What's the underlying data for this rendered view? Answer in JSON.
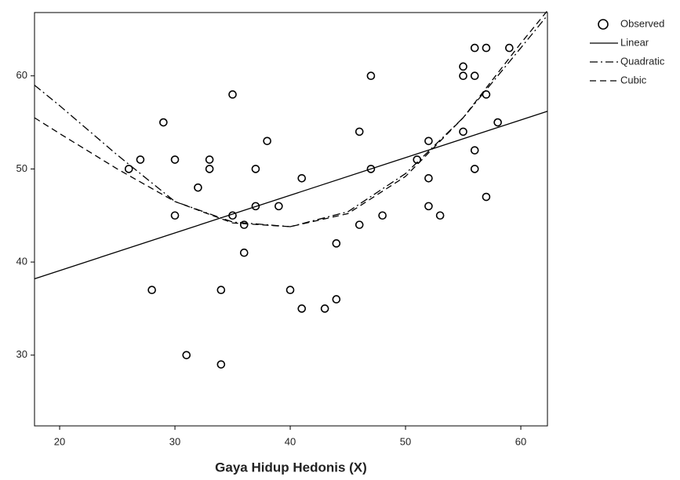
{
  "chart_data": {
    "type": "scatter",
    "x_label": "Gaya Hidup Hedonis (X)",
    "xlim": [
      17.82,
      62.31
    ],
    "ylim": [
      22.4,
      66.8
    ],
    "xticks": [
      20,
      30,
      40,
      50,
      60
    ],
    "yticks": [
      30,
      40,
      50,
      60
    ],
    "grid": false,
    "legend": "outside-right",
    "series": [
      {
        "name": "Observed",
        "kind": "points",
        "color": "#000000",
        "x": [
          26,
          27,
          28,
          29,
          30,
          30,
          31,
          32,
          33,
          33,
          34,
          34,
          35,
          35,
          36,
          36,
          37,
          37,
          38,
          39,
          40,
          41,
          41,
          43,
          44,
          44,
          46,
          46,
          47,
          47,
          48,
          51,
          52,
          52,
          52,
          53,
          55,
          55,
          55,
          56,
          56,
          56,
          56,
          57,
          57,
          57,
          58,
          59
        ],
        "values": [
          50,
          51,
          37,
          55,
          51,
          45,
          30,
          48,
          51,
          50,
          37,
          29,
          58,
          45,
          44,
          41,
          50,
          46,
          53,
          46,
          37,
          49,
          35,
          35,
          42,
          36,
          54,
          44,
          60,
          50,
          45,
          51,
          53,
          49,
          46,
          45,
          61,
          60,
          54,
          63,
          60,
          52,
          50,
          63,
          58,
          47,
          55,
          63
        ]
      },
      {
        "name": "Linear",
        "kind": "line",
        "style": "solid",
        "color": "#000000",
        "x": [
          17.82,
          62.31
        ],
        "values": [
          38.2,
          56.2
        ]
      },
      {
        "name": "Quadratic",
        "kind": "line",
        "style": "dash-dot",
        "color": "#000000",
        "x": [
          17.82,
          20,
          25,
          30,
          35,
          40,
          45,
          50,
          55,
          60,
          62.31
        ],
        "values": [
          59,
          56.8,
          51.5,
          46.5,
          44.3,
          43.8,
          45.4,
          49.5,
          55.5,
          63,
          66.5
        ]
      },
      {
        "name": "Cubic",
        "kind": "line",
        "style": "dashed",
        "color": "#000000",
        "x": [
          17.82,
          20,
          25,
          30,
          35,
          40,
          45,
          50,
          55,
          60,
          62.31
        ],
        "values": [
          55.5,
          53.8,
          50,
          46.5,
          44.2,
          43.8,
          45.2,
          49.2,
          55.5,
          63.5,
          67
        ]
      }
    ]
  }
}
